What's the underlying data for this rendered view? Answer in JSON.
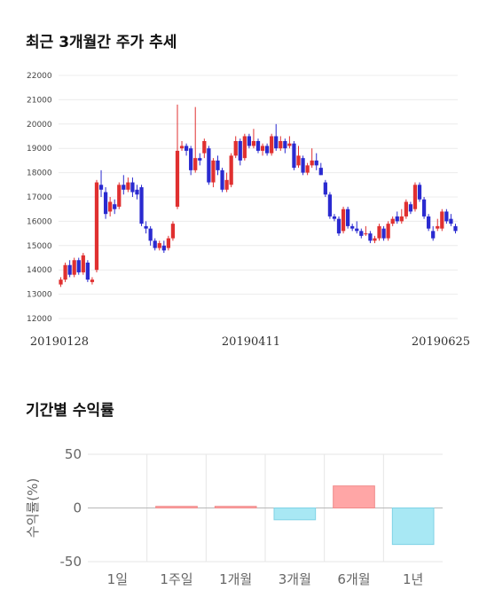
{
  "section1": {
    "title": "최근 3개월간 주가 추세"
  },
  "section2": {
    "title": "기간별 수익률"
  },
  "chart_data": [
    {
      "type": "candlestick",
      "title": "최근 3개월간 주가 추세",
      "ylim": [
        12000,
        22000
      ],
      "yticks": [
        12000,
        13000,
        14000,
        15000,
        16000,
        17000,
        18000,
        19000,
        20000,
        21000,
        22000
      ],
      "xticks": [
        "20190128",
        "20190411",
        "20190625"
      ],
      "colors": {
        "up": "#e03030",
        "down": "#2a2ad0",
        "grid": "#ececec"
      },
      "candles": [
        [
          13400,
          13600,
          13300,
          13700
        ],
        [
          13600,
          14200,
          13500,
          14300
        ],
        [
          14200,
          13800,
          13700,
          14400
        ],
        [
          13800,
          14400,
          13700,
          14500
        ],
        [
          14400,
          13900,
          13800,
          14500
        ],
        [
          13900,
          14600,
          13800,
          14700
        ],
        [
          14300,
          13600,
          13500,
          14400
        ],
        [
          13500,
          13600,
          13400,
          13700
        ],
        [
          14000,
          17600,
          13900,
          17700
        ],
        [
          17500,
          17300,
          17000,
          18100
        ],
        [
          17200,
          16300,
          16100,
          17400
        ],
        [
          16400,
          16800,
          16200,
          17000
        ],
        [
          16700,
          16500,
          16300,
          16900
        ],
        [
          16600,
          17500,
          16500,
          17600
        ],
        [
          17500,
          17300,
          17100,
          17900
        ],
        [
          17300,
          17600,
          17200,
          17800
        ],
        [
          17600,
          17200,
          17000,
          17800
        ],
        [
          17300,
          17100,
          16900,
          17500
        ],
        [
          17400,
          15900,
          15800,
          17500
        ],
        [
          15800,
          15700,
          15500,
          16000
        ],
        [
          15700,
          15200,
          15000,
          15800
        ],
        [
          15200,
          14900,
          14800,
          15300
        ],
        [
          14900,
          15100,
          14800,
          15200
        ],
        [
          15000,
          14800,
          14700,
          15200
        ],
        [
          14900,
          15300,
          14800,
          15400
        ],
        [
          15300,
          15900,
          15200,
          16000
        ],
        [
          16600,
          18900,
          16500,
          20800
        ],
        [
          19000,
          19100,
          18900,
          19300
        ],
        [
          19100,
          18900,
          18700,
          19200
        ],
        [
          19000,
          18100,
          17900,
          19100
        ],
        [
          18100,
          18600,
          18000,
          20700
        ],
        [
          18600,
          18500,
          18300,
          18800
        ],
        [
          18800,
          19300,
          18600,
          19400
        ],
        [
          19000,
          17600,
          17500,
          19100
        ],
        [
          17600,
          18500,
          17400,
          18600
        ],
        [
          18500,
          18100,
          17900,
          18700
        ],
        [
          18100,
          17300,
          17200,
          18200
        ],
        [
          17300,
          17700,
          17200,
          18000
        ],
        [
          17500,
          18700,
          17400,
          18800
        ],
        [
          18700,
          19300,
          18600,
          19500
        ],
        [
          19300,
          18500,
          18300,
          19400
        ],
        [
          18600,
          19500,
          18500,
          19600
        ],
        [
          19500,
          19100,
          19000,
          19600
        ],
        [
          19100,
          19300,
          19000,
          19800
        ],
        [
          19300,
          18900,
          18800,
          19400
        ],
        [
          18900,
          19100,
          18700,
          19200
        ],
        [
          19100,
          18800,
          18700,
          19200
        ],
        [
          18800,
          19500,
          18700,
          19600
        ],
        [
          19500,
          19000,
          18900,
          20000
        ],
        [
          19000,
          19300,
          18900,
          19500
        ],
        [
          19300,
          19000,
          18800,
          19400
        ],
        [
          19100,
          19200,
          19000,
          19500
        ],
        [
          19200,
          18200,
          18100,
          19300
        ],
        [
          18300,
          18700,
          18200,
          19100
        ],
        [
          18600,
          18000,
          17900,
          18700
        ],
        [
          18000,
          18300,
          17900,
          18400
        ],
        [
          18300,
          18500,
          18200,
          19000
        ],
        [
          18500,
          18300,
          18100,
          18800
        ],
        [
          18200,
          17900,
          17900,
          18400
        ],
        [
          17600,
          17100,
          17000,
          17700
        ],
        [
          17100,
          16200,
          16100,
          17200
        ],
        [
          16200,
          16100,
          16000,
          16300
        ],
        [
          16100,
          15500,
          15400,
          16200
        ],
        [
          15600,
          16500,
          15500,
          16600
        ],
        [
          16500,
          15800,
          15700,
          16600
        ],
        [
          15800,
          15700,
          15600,
          15900
        ],
        [
          15700,
          15600,
          15500,
          16000
        ],
        [
          15600,
          15400,
          15300,
          15700
        ],
        [
          15500,
          15500,
          15400,
          15800
        ],
        [
          15500,
          15200,
          15100,
          15600
        ],
        [
          15200,
          15300,
          15100,
          15400
        ],
        [
          15300,
          15800,
          15200,
          15900
        ],
        [
          15700,
          15300,
          15200,
          15800
        ],
        [
          15300,
          15900,
          15200,
          16000
        ],
        [
          15900,
          16100,
          15800,
          16200
        ],
        [
          16200,
          16000,
          15900,
          16400
        ],
        [
          16000,
          16200,
          15900,
          16500
        ],
        [
          16200,
          16800,
          16100,
          16900
        ],
        [
          16700,
          16400,
          16300,
          16800
        ],
        [
          16500,
          17500,
          16400,
          17600
        ],
        [
          17500,
          16900,
          16800,
          17600
        ],
        [
          16900,
          16200,
          16100,
          17000
        ],
        [
          16200,
          15700,
          15600,
          16300
        ],
        [
          15600,
          15300,
          15200,
          15800
        ],
        [
          15700,
          15800,
          15600,
          16100
        ],
        [
          15700,
          16400,
          15600,
          16500
        ],
        [
          16400,
          16000,
          15900,
          16500
        ],
        [
          16100,
          15900,
          15800,
          16300
        ],
        [
          15800,
          15600,
          15500,
          15900
        ]
      ]
    },
    {
      "type": "bar",
      "title": "기간별 수익률",
      "categories": [
        "1일",
        "1주일",
        "1개월",
        "3개월",
        "6개월",
        "1년"
      ],
      "values": [
        0,
        1.5,
        1.5,
        -11,
        20.5,
        -34
      ],
      "ylim": [
        -50,
        50
      ],
      "yticks": [
        50,
        0,
        -50
      ],
      "ylabel": "수익률(%)",
      "colors": {
        "positive": "#ffa6a6",
        "negative": "#a8e8f4",
        "pos_edge": "#f08a8a",
        "neg_edge": "#7fd2e6"
      }
    }
  ]
}
